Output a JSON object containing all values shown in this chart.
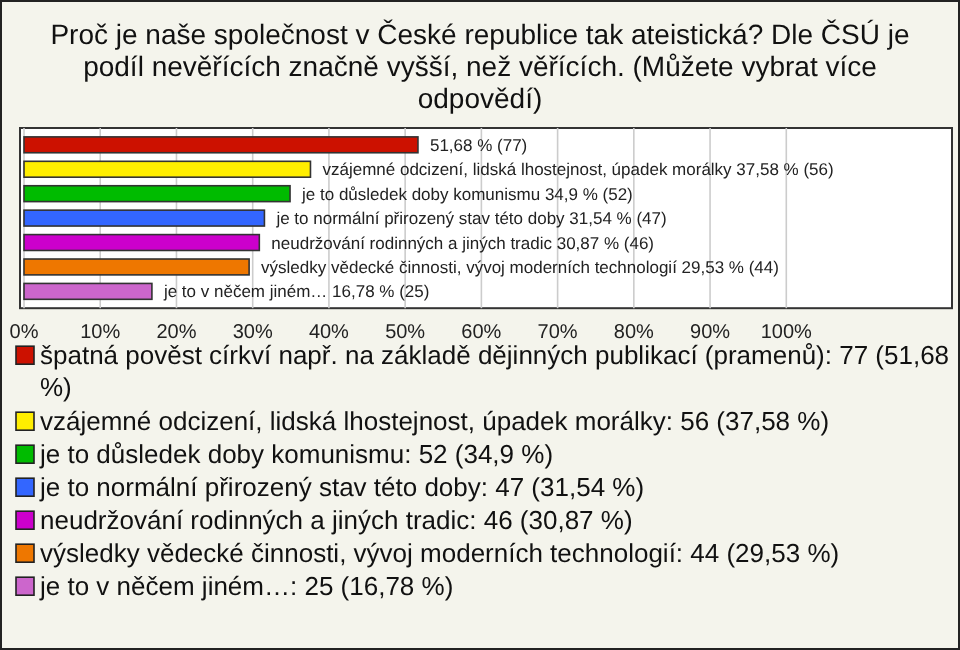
{
  "chart_data": {
    "type": "bar",
    "orientation": "horizontal",
    "stacked": true,
    "title": "Proč je naše společnost v České republice tak ateistická? Dle ČSÚ je podíl nevěřících značně vyšší, než věřících. (Můžete vybrat více odpovědí)",
    "categories": [
      null,
      null,
      null,
      null,
      null,
      null,
      null
    ],
    "series": [
      {
        "name": "špatná pověst církví např. na základě dějinných publikací (pramenů): 77 (51,68 %)",
        "color": "#cc1100",
        "values": [
          51.68,
          null,
          null,
          null,
          null,
          null,
          null
        ],
        "value_labels": [
          "51,68 % (77)",
          null,
          null,
          null,
          null,
          null,
          null
        ]
      },
      {
        "name": "vzájemné odcizení, lidská lhostejnost, úpadek morálky: 56 (37,58 %)",
        "color": "#ffee00",
        "values": [
          null,
          37.58,
          null,
          null,
          null,
          null,
          null
        ],
        "value_labels": [
          null,
          "vzájemné odcizení, lidská lhostejnost, úpadek morálky 37,58 % (56)",
          null,
          null,
          null,
          null,
          null
        ]
      },
      {
        "name": "je to důsledek doby komunismu: 52 (34,9 %)",
        "color": "#00bb00",
        "values": [
          null,
          null,
          34.9,
          null,
          null,
          null,
          null
        ],
        "value_labels": [
          null,
          null,
          "je to důsledek doby komunismu 34,9 % (52)",
          null,
          null,
          null,
          null
        ]
      },
      {
        "name": "je to normální přirozený stav této doby: 47 (31,54 %)",
        "color": "#3366ff",
        "values": [
          null,
          null,
          null,
          31.54,
          null,
          null,
          null
        ],
        "value_labels": [
          null,
          null,
          null,
          "je to normální přirozený stav této doby 31,54 % (47)",
          null,
          null,
          null
        ]
      },
      {
        "name": "neudržování rodinných a jiných tradic: 46 (30,87 %)",
        "color": "#cc00cc",
        "values": [
          null,
          null,
          null,
          null,
          30.87,
          null,
          null
        ],
        "value_labels": [
          null,
          null,
          null,
          null,
          "neudržování rodinných a jiných tradic 30,87 % (46)",
          null,
          null
        ]
      },
      {
        "name": "výsledky vědecké činnosti, vývoj moderních technologií: 44 (29,53 %)",
        "color": "#ee7700",
        "values": [
          null,
          null,
          null,
          null,
          null,
          29.53,
          null
        ],
        "value_labels": [
          null,
          null,
          null,
          null,
          null,
          "výsledky vědecké činnosti, vývoj moderních technologií 29,53 % (44)",
          null
        ]
      },
      {
        "name": "je to v něčem jiném…: 25 (16,78 %)",
        "color": "#cc66cc",
        "values": [
          null,
          null,
          null,
          null,
          null,
          null,
          16.78
        ],
        "value_labels": [
          null,
          null,
          null,
          null,
          null,
          null,
          "je to v něčem jiném… 16,78 % (25)"
        ]
      }
    ],
    "xlim": [
      0,
      122
    ],
    "xticks": [
      {
        "value": 0,
        "label": "0%"
      },
      {
        "value": 10,
        "label": "10%"
      },
      {
        "value": 20,
        "label": "20%"
      },
      {
        "value": 30,
        "label": "30%"
      },
      {
        "value": 40,
        "label": "40%"
      },
      {
        "value": 50,
        "label": "50%"
      },
      {
        "value": 60,
        "label": "60%"
      },
      {
        "value": 70,
        "label": "70%"
      },
      {
        "value": 80,
        "label": "80%"
      },
      {
        "value": 90,
        "label": "90%"
      },
      {
        "value": 100,
        "label": "100%"
      }
    ],
    "grid": "x",
    "legend": "bottom"
  }
}
